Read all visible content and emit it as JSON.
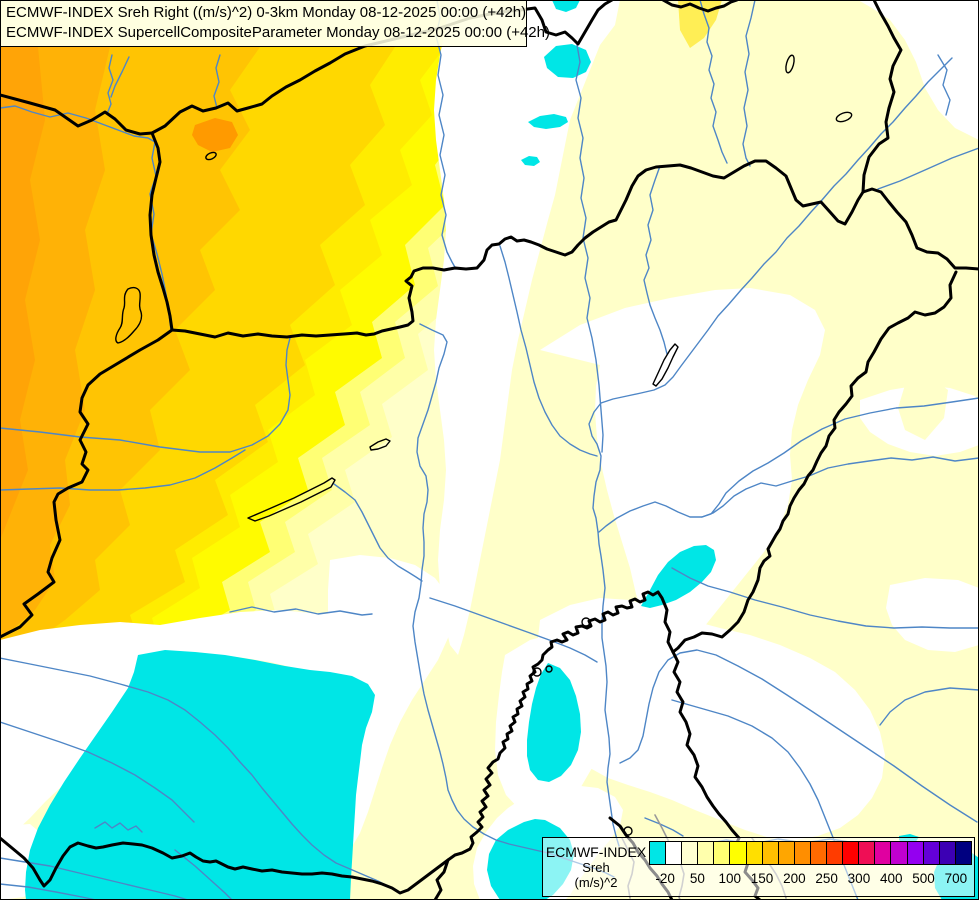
{
  "title_box": {
    "line1": "ECMWF-INDEX Sreh Right ((m/s)^2) 0-3km Monday 08-12-2025 00:00 (+42h)",
    "line2": "ECMWF-INDEX SupercellCompositeParameter Monday 08-12-2025 00:00 (+42h)"
  },
  "legend": {
    "title": "ECMWF-INDEX",
    "parameter": "Sreh",
    "units": "(m/s)^2",
    "tick_labels": [
      "-20",
      "50",
      "100",
      "150",
      "200",
      "250",
      "300",
      "400",
      "500",
      "700"
    ],
    "colorbar_colors": [
      "#00E6E6",
      "#FFFFFF",
      "#FFFFD2",
      "#FFFFAC",
      "#FFFF72",
      "#FFFF00",
      "#FFDF00",
      "#FFBF00",
      "#FFA600",
      "#FF8E00",
      "#FF6A00",
      "#FF3C00",
      "#FF0000",
      "#EF0E55",
      "#E000A0",
      "#C000D0",
      "#9400F0",
      "#6400D8",
      "#3C00B4",
      "#000080"
    ]
  },
  "map": {
    "region": "Carpathian Basin (Hungary and surroundings)",
    "colors": {
      "base": "#FFFFC9",
      "white": "#FFFFFF",
      "cyan": "#00E6E6",
      "band1": "#FFA407",
      "band2": "#FFB206",
      "band3": "#FFC403",
      "band4": "#FFD800",
      "band5": "#FFEC00",
      "band6": "#FFFB00",
      "band7": "#FFFF74",
      "band8": "#FFFFA8",
      "blob": "#FF9A00",
      "wedge": "#FFEE55",
      "river": "#4E86C6",
      "border": "#000000",
      "gray": "#9A9A9A"
    }
  }
}
